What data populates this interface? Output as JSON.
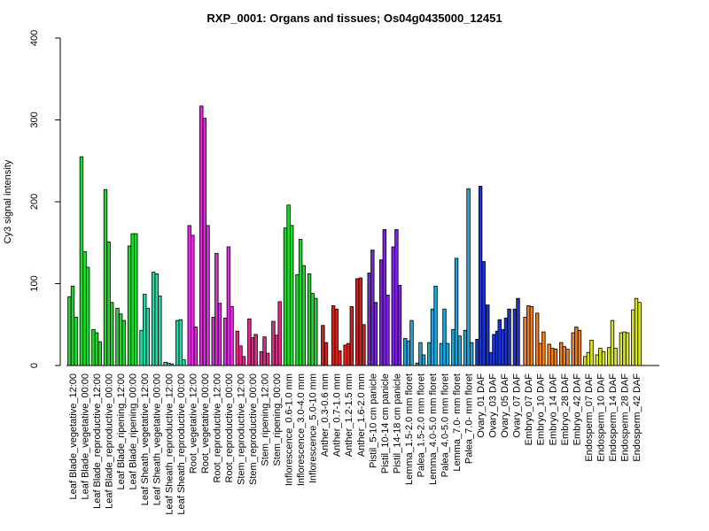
{
  "chart_data": {
    "type": "bar",
    "title": "RXP_0001: Organs and tissues; Os04g0435000_12451",
    "xlabel": "",
    "ylabel": "Cy3 signal intensity",
    "ylim": [
      0,
      400
    ],
    "yticks": [
      0,
      100,
      200,
      300,
      400
    ],
    "grid": false,
    "legend": "none",
    "groups": [
      {
        "label": "Leaf Blade_vegetative_12:00",
        "color": "#22d62f",
        "values": [
          84,
          97,
          59
        ]
      },
      {
        "label": "Leaf Blade_vegetative_00:00",
        "color": "#22d62f",
        "values": [
          255,
          139,
          120
        ]
      },
      {
        "label": "Leaf Blade_reproductive_12:00",
        "color": "#22d62f",
        "values": [
          44,
          40,
          29
        ]
      },
      {
        "label": "Leaf Blade_reproductive_00:00",
        "color": "#22d62f",
        "values": [
          215,
          151,
          77
        ]
      },
      {
        "label": "Leaf Blade_ripening_12:00",
        "color": "#22d62f",
        "values": [
          70,
          63,
          55
        ]
      },
      {
        "label": "Leaf Blade_ripening_00:00",
        "color": "#22d62f",
        "values": [
          146,
          161,
          161
        ]
      },
      {
        "label": "Leaf Sheath_vegetative_12:00",
        "color": "#28d8a6",
        "values": [
          43,
          87,
          70
        ]
      },
      {
        "label": "Leaf Sheath_vegetative_00:00",
        "color": "#28d8a6",
        "values": [
          114,
          112,
          85
        ]
      },
      {
        "label": "Leaf Sheath_reproductive_12:00",
        "color": "#28d8a6",
        "values": [
          4,
          3,
          2
        ]
      },
      {
        "label": "Leaf Sheath_reproductive_00:00",
        "color": "#28d8a6",
        "values": [
          55,
          56,
          7
        ]
      },
      {
        "label": "Root_vegetative_12:00",
        "color": "#e02ae2",
        "values": [
          171,
          159,
          47
        ]
      },
      {
        "label": "Root_vegetative_00:00",
        "color": "#e02ae2",
        "values": [
          317,
          302,
          171
        ]
      },
      {
        "label": "Root_reproductive_12:00",
        "color": "#e02ae2",
        "values": [
          59,
          137,
          76
        ]
      },
      {
        "label": "Root_reproductive_00:00",
        "color": "#e02ae2",
        "values": [
          58,
          145,
          72
        ]
      },
      {
        "label": "Stem_reproductive_12:00",
        "color": "#e02a85",
        "values": [
          42,
          24,
          11
        ]
      },
      {
        "label": "Stem_reproductive_00:00",
        "color": "#e02a85",
        "values": [
          57,
          34,
          38
        ]
      },
      {
        "label": "Stem_ripening_12:00",
        "color": "#e02a85",
        "values": [
          17,
          35,
          15
        ]
      },
      {
        "label": "Stem_ripening_00:00",
        "color": "#e02a85",
        "values": [
          54,
          37,
          78
        ]
      },
      {
        "label": "Inflorescence_0.6-1.0 mm",
        "color": "#22d62f",
        "values": [
          168,
          196,
          171
        ]
      },
      {
        "label": "Inflorescence_3.0-4.0 mm",
        "color": "#22d62f",
        "values": [
          111,
          154,
          122
        ]
      },
      {
        "label": "Inflorescence_5.0-10 mm",
        "color": "#22d62f",
        "values": [
          112,
          88,
          82
        ]
      },
      {
        "label": "Anther_0.3-0.6 mm",
        "color": "#d8211d",
        "values": [
          49,
          28
        ]
      },
      {
        "label": "Anther_0.7-1.0 mm",
        "color": "#d8211d",
        "values": [
          73,
          69,
          18
        ]
      },
      {
        "label": "Anther_1.2-1.5 mm",
        "color": "#d8211d",
        "values": [
          25,
          27,
          72
        ]
      },
      {
        "label": "Anther_1.6-2.0 mm",
        "color": "#d8211d",
        "values": [
          106,
          107,
          50
        ]
      },
      {
        "label": "Pistil_5-10 cm panicle",
        "color": "#7b23de",
        "values": [
          113,
          141,
          77
        ]
      },
      {
        "label": "Pistil_10-14 cm panicle",
        "color": "#7b23de",
        "values": [
          129,
          166,
          86
        ]
      },
      {
        "label": "Pistil_14-18 cm panicle",
        "color": "#7b23de",
        "values": [
          145,
          166,
          98
        ]
      },
      {
        "label": "Lemma_1.5-2.0 mm floret",
        "color": "#1fa5d9",
        "values": [
          33,
          30,
          55
        ]
      },
      {
        "label": "Palea_1.5-2.0 mm floret",
        "color": "#1fa5d9",
        "values": [
          3,
          28,
          13
        ]
      },
      {
        "label": "Lemma_4.0-5.0 mm floret",
        "color": "#1fa5d9",
        "values": [
          28,
          69,
          97
        ]
      },
      {
        "label": "Palea_4.0-5.0 mm floret",
        "color": "#1fa5d9",
        "values": [
          27,
          69,
          27
        ]
      },
      {
        "label": "Lemma_7.0- mm floret",
        "color": "#1fa5d9",
        "values": [
          44,
          131,
          36
        ]
      },
      {
        "label": "Palea_7.0- mm floret",
        "color": "#1fa5d9",
        "values": [
          43,
          216,
          28
        ]
      },
      {
        "label": "Ovary_01 DAF",
        "color": "#1a34d6",
        "values": [
          32,
          219,
          127
        ]
      },
      {
        "label": "Ovary_03 DAF",
        "color": "#1a34d6",
        "values": [
          74,
          16,
          38,
          42
        ]
      },
      {
        "label": "Ovary_05 DAF",
        "color": "#1a34d6",
        "values": [
          56,
          44,
          58,
          69
        ]
      },
      {
        "label": "Ovary_07 DAF",
        "color": "#1a34d6",
        "values": [
          69,
          82
        ]
      },
      {
        "label": "Embryo_07 DAF",
        "color": "#ef7f1f",
        "values": [
          59,
          73,
          72
        ]
      },
      {
        "label": "Embryo_10 DAF",
        "color": "#ef7f1f",
        "values": [
          64,
          27,
          41
        ]
      },
      {
        "label": "Embryo_14 DAF",
        "color": "#ef7f1f",
        "values": [
          26,
          21,
          20
        ]
      },
      {
        "label": "Embryo_28 DAF",
        "color": "#ef7f1f",
        "values": [
          28,
          23,
          20
        ]
      },
      {
        "label": "Embryo_42 DAF",
        "color": "#ef7f1f",
        "values": [
          40,
          47,
          43
        ]
      },
      {
        "label": "Endosperm_07 DAF",
        "color": "#d8e51f",
        "values": [
          11,
          16,
          31
        ]
      },
      {
        "label": "Endosperm_10 DAF",
        "color": "#d8e51f",
        "values": [
          13,
          21,
          17
        ]
      },
      {
        "label": "Endosperm_14 DAF",
        "color": "#d8e51f",
        "values": [
          22,
          55,
          21
        ]
      },
      {
        "label": "Endosperm_28 DAF",
        "color": "#d8e51f",
        "values": [
          40,
          41,
          40
        ]
      },
      {
        "label": "Endosperm_42 DAF",
        "color": "#d8e51f",
        "values": [
          68,
          82,
          77
        ]
      }
    ]
  }
}
